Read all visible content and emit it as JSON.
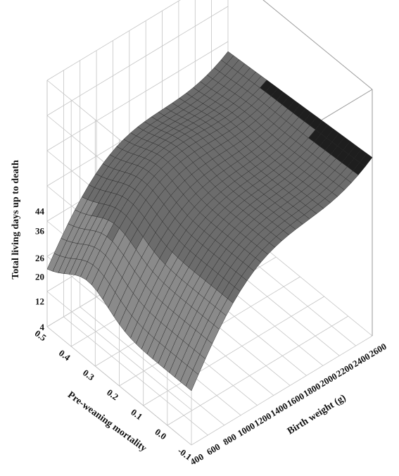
{
  "chart_data": {
    "type": "surface3d",
    "zlabel": "Total living days up to death",
    "xlabel": "Birth weight (g)",
    "ylabel": "Pre-weaning mortality",
    "x_ticks": [
      "400",
      "600",
      "800",
      "1000",
      "1200",
      "1400",
      "1600",
      "1800",
      "2000",
      "2200",
      "2400",
      "2600"
    ],
    "y_ticks": [
      "-0.1",
      "0.0",
      "0.1",
      "0.2",
      "0.3",
      "0.4",
      "0.5"
    ],
    "z_ticks": [
      "4",
      "12",
      "20",
      "26",
      "36",
      "44"
    ],
    "x_range": [
      400,
      2600
    ],
    "y_range": [
      -0.1,
      0.5
    ],
    "grid": true,
    "colors": {
      "low": "#8a8a8a",
      "mid": "#6c6c6c",
      "high": "#1e1e1e",
      "mesh": "#262626",
      "grid": "#c4c4c4"
    }
  }
}
